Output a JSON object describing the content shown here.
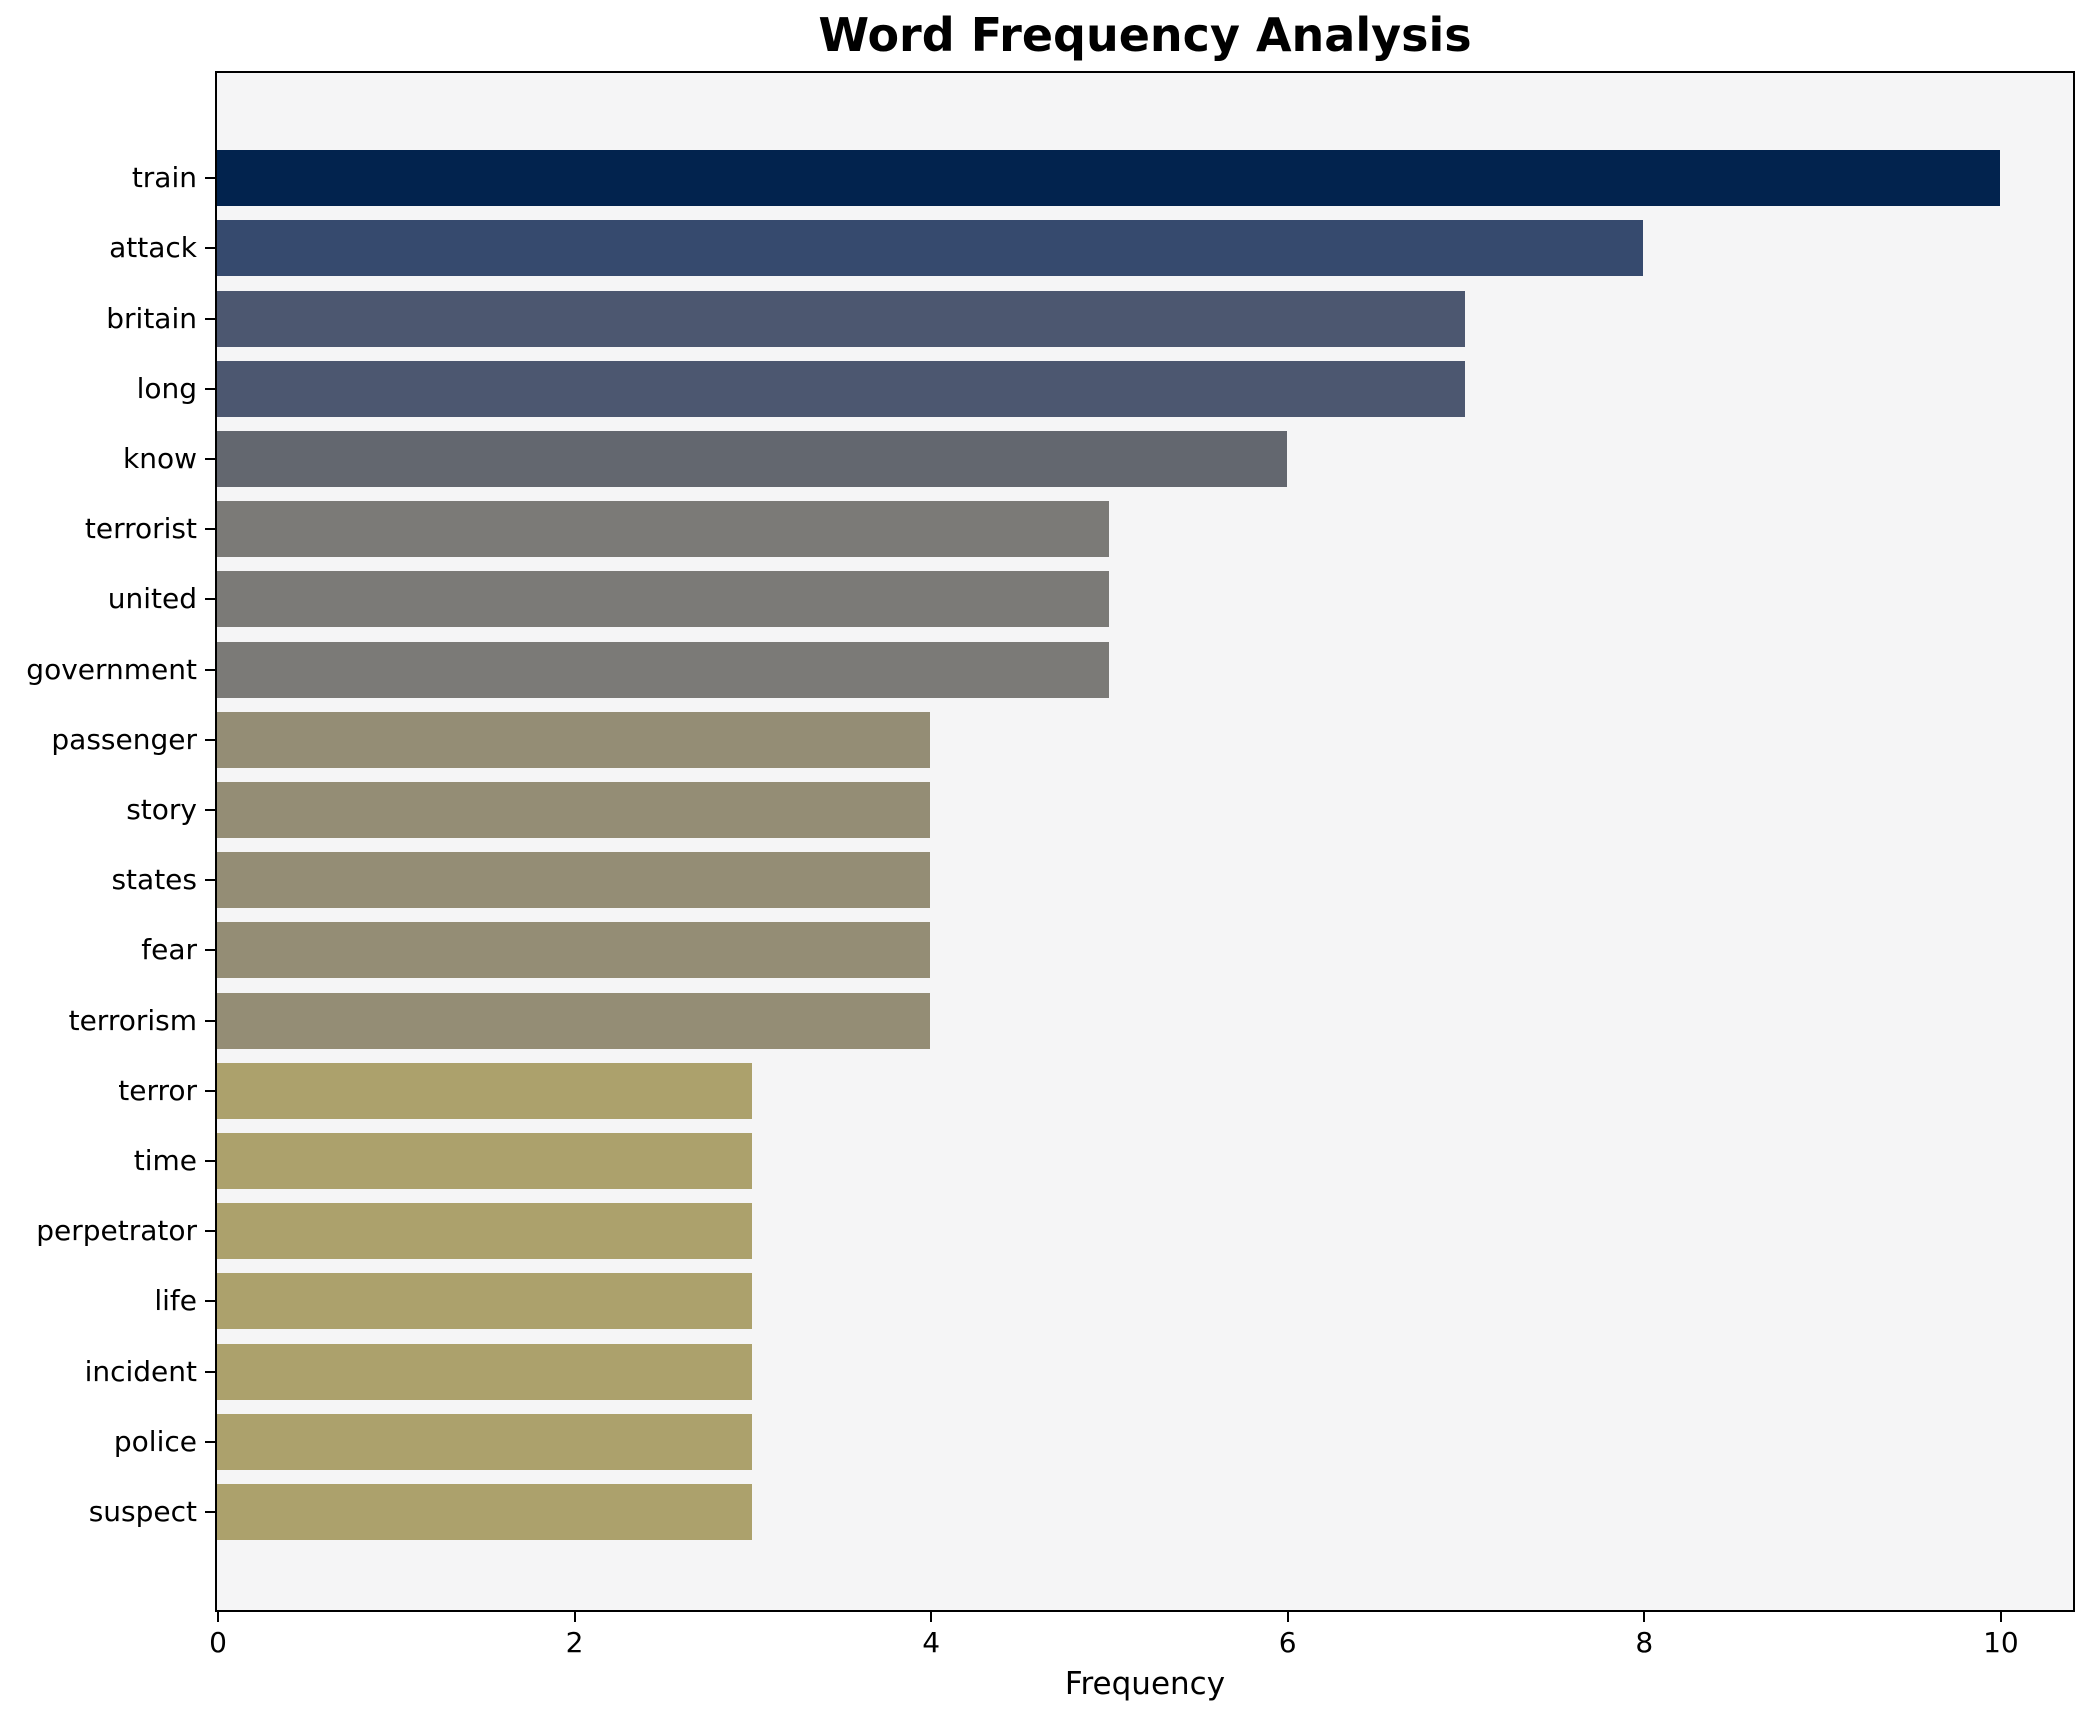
{
  "title": "Word Frequency Analysis",
  "chart_data": {
    "type": "bar",
    "orientation": "horizontal",
    "title": "Word Frequency Analysis",
    "xlabel": "Frequency",
    "ylabel": "",
    "categories": [
      "train",
      "attack",
      "britain",
      "long",
      "know",
      "terrorist",
      "united",
      "government",
      "passenger",
      "story",
      "states",
      "fear",
      "terrorism",
      "terror",
      "time",
      "perpetrator",
      "life",
      "incident",
      "police",
      "suspect"
    ],
    "values": [
      10,
      8,
      7,
      7,
      6,
      5,
      5,
      5,
      4,
      4,
      4,
      4,
      4,
      3,
      3,
      3,
      3,
      3,
      3,
      3
    ],
    "bar_colors": [
      "#02234e",
      "#364a6e",
      "#4c5770",
      "#4c5770",
      "#63676f",
      "#7b7a77",
      "#7b7a77",
      "#7b7a77",
      "#948d75",
      "#948d75",
      "#948d75",
      "#948d75",
      "#948d75",
      "#aca16c",
      "#aca16c",
      "#aca16c",
      "#aca16c",
      "#aca16c",
      "#aca16c",
      "#aca16c"
    ],
    "xlim": [
      0,
      10.41
    ],
    "xticks": [
      0,
      2,
      4,
      6,
      8,
      10
    ],
    "grid": false,
    "legend": false,
    "plot_bg": "#f5f5f6",
    "page_bg": "#ffffff",
    "spine_color": "#000000",
    "colormap": "cividis"
  }
}
